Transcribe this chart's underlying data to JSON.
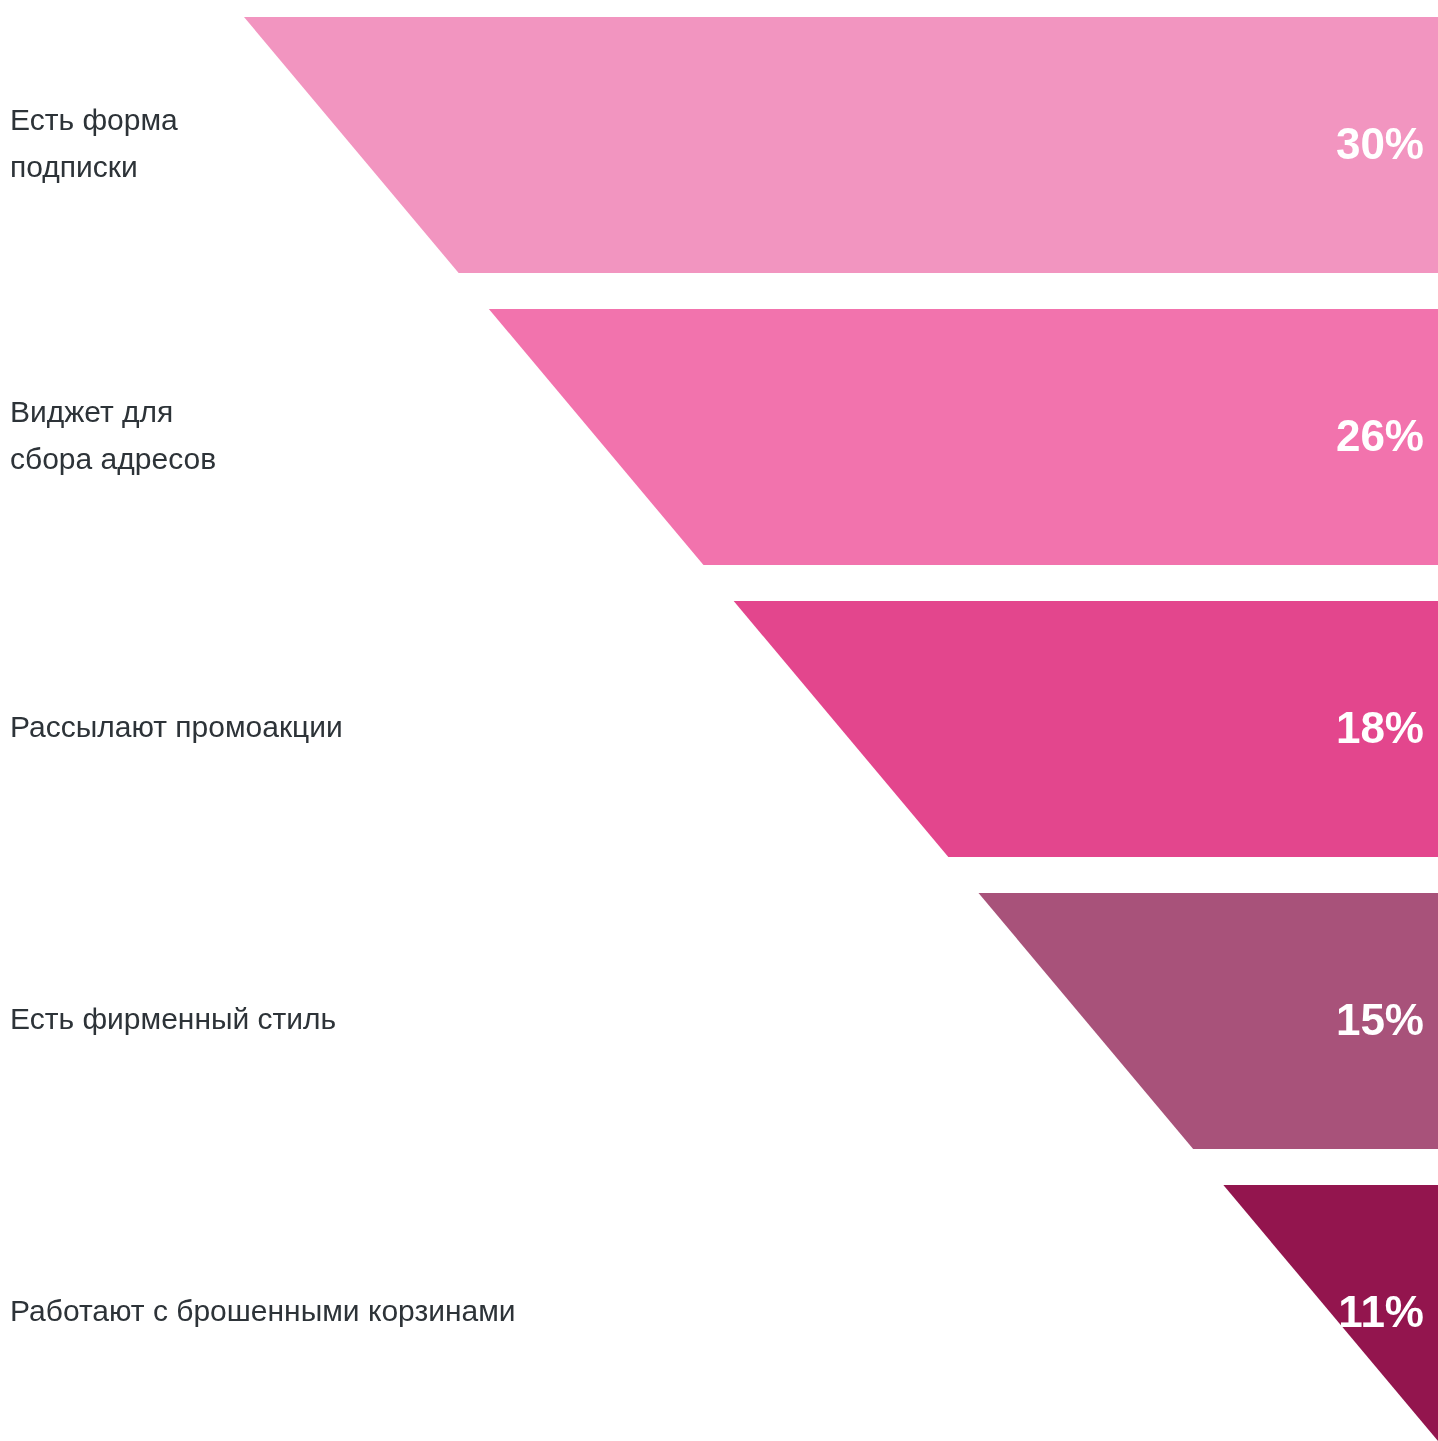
{
  "chart_data": {
    "type": "other",
    "categories": [
      "Есть форма\nподписки",
      "Виджет для\nсбора адресов",
      "Рассылают промоакции",
      "Есть фирменный стиль",
      "Работают с брошенными корзинами"
    ],
    "values": [
      30,
      26,
      18,
      15,
      11
    ],
    "value_labels": [
      "30%",
      "26%",
      "18%",
      "15%",
      "11%"
    ],
    "colors": [
      "#f295c0",
      "#f273ad",
      "#e3468d",
      "#a8527a",
      "#93154e"
    ]
  }
}
